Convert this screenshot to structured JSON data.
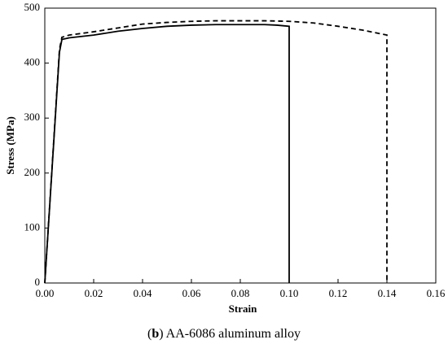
{
  "chart_data": {
    "type": "line",
    "x_label": "Strain",
    "y_label": "Stress (MPa)",
    "caption": {
      "open": "(",
      "label": "b",
      "text": ") AA-6086 aluminum alloy"
    },
    "xlim": [
      0,
      0.16
    ],
    "ylim": [
      0,
      500
    ],
    "xticks": [
      {
        "value": 0,
        "label": "0.00"
      },
      {
        "value": 0.02,
        "label": "0.02"
      },
      {
        "value": 0.04,
        "label": "0.04"
      },
      {
        "value": 0.06,
        "label": "0.06"
      },
      {
        "value": 0.08,
        "label": "0.08"
      },
      {
        "value": 0.1,
        "label": "0.10"
      },
      {
        "value": 0.12,
        "label": "0.12"
      },
      {
        "value": 0.14,
        "label": "0.14"
      },
      {
        "value": 0.16,
        "label": "0.16"
      }
    ],
    "yticks": [
      0,
      100,
      200,
      300,
      400,
      500
    ],
    "series": [
      {
        "color": "#000000",
        "style": "solid",
        "x": [
          0,
          0.006,
          0.007,
          0.01,
          0.02,
          0.03,
          0.04,
          0.05,
          0.06,
          0.07,
          0.08,
          0.09,
          0.095,
          0.1,
          0.1
        ],
        "values": [
          0,
          420,
          443,
          446,
          451,
          458,
          463,
          467,
          469,
          470,
          470,
          470,
          469,
          467,
          0
        ]
      },
      {
        "color": "#000000",
        "style": "dashed",
        "x": [
          0,
          0.006,
          0.007,
          0.01,
          0.02,
          0.03,
          0.04,
          0.05,
          0.06,
          0.07,
          0.08,
          0.09,
          0.1,
          0.11,
          0.12,
          0.13,
          0.14,
          0.14
        ],
        "values": [
          0,
          425,
          447,
          451,
          457,
          464,
          471,
          474,
          476,
          477,
          477,
          477,
          476,
          473,
          467,
          460,
          451,
          0
        ]
      }
    ]
  }
}
